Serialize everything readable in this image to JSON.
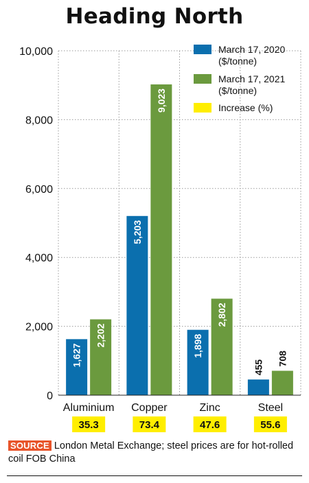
{
  "chart_data": {
    "type": "bar",
    "title": "Heading North",
    "categories": [
      "Aluminium",
      "Copper",
      "Zinc",
      "Steel"
    ],
    "series": [
      {
        "name": "March 17, 2020 ($/tonne)",
        "values": [
          1627,
          5203,
          1898,
          455
        ],
        "labels": [
          "1,627",
          "5,203",
          "1,898",
          "455"
        ],
        "color": "#0b6fae"
      },
      {
        "name": "March 17, 2021 ($/tonne)",
        "values": [
          2202,
          9023,
          2802,
          708
        ],
        "labels": [
          "2,202",
          "9,023",
          "2,802",
          "708"
        ],
        "color": "#6b9a3e"
      }
    ],
    "increase": {
      "name": "Increase (%)",
      "values": [
        "35.3",
        "73.4",
        "47.6",
        "55.6"
      ],
      "color": "#ffee00"
    },
    "ylim": [
      0,
      10000
    ],
    "yticks": [
      0,
      2000,
      4000,
      6000,
      8000,
      10000
    ],
    "ytick_labels": [
      "0",
      "2,000",
      "4,000",
      "6,000",
      "8,000",
      "10,000"
    ],
    "grid": true,
    "legend_position": "top-right"
  },
  "source": {
    "tag": "SOURCE",
    "text": "London Metal Exchange; steel prices are for hot-rolled coil FOB China"
  }
}
